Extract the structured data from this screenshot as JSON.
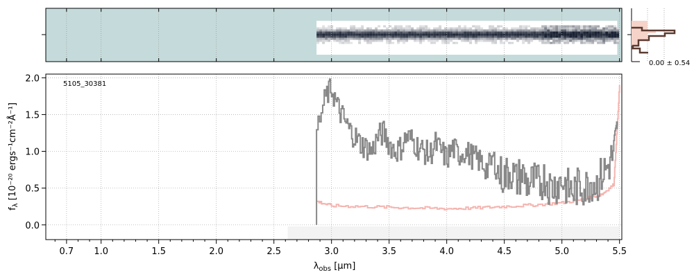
{
  "chart_data": [
    {
      "type": "image",
      "panel": "2d-spectrum",
      "colormap": [
        "#ffffff",
        "#1a2233"
      ],
      "background": "#c5dbdb",
      "x_start": 2.87,
      "x_end": 5.48,
      "xlim": [
        0.52,
        5.52
      ]
    },
    {
      "type": "line",
      "panel": "1d-spectrum",
      "annotation": "5105_30381",
      "xlabel_main": "λ",
      "xlabel_sub": "obs",
      "xlabel_unit": " [μm]",
      "ylabel_main": "f",
      "ylabel_sub": "λ",
      "ylabel_rest": " [10⁻²⁰ ergs⁻¹cm⁻²Å⁻¹]",
      "xlim": [
        0.52,
        5.52
      ],
      "ylim": [
        -0.2,
        2.05
      ],
      "x_ticks": [
        0.7,
        1.0,
        1.5,
        2.0,
        2.5,
        3.0,
        3.5,
        4.0,
        4.5,
        5.0,
        5.5
      ],
      "x_tick_labels": [
        "0.7",
        "1.0",
        "1.5",
        "2.0",
        "2.5",
        "3.0",
        "3.5",
        "4.0",
        "4.5",
        "5.0",
        "5.5"
      ],
      "y_ticks": [
        0.0,
        0.5,
        1.0,
        1.5,
        2.0
      ],
      "y_tick_labels": [
        "0.0",
        "0.5",
        "1.0",
        "1.5",
        "2.0"
      ],
      "grid": true,
      "series": [
        {
          "role": "flux",
          "color": "#888888",
          "x": [
            2.87,
            2.95,
            3.0,
            3.05,
            3.1,
            3.15,
            3.2,
            3.25,
            3.3,
            3.35,
            3.4,
            3.45,
            3.5,
            3.55,
            3.6,
            3.65,
            3.7,
            3.75,
            3.8,
            3.85,
            3.9,
            3.95,
            4.0,
            4.05,
            4.1,
            4.15,
            4.2,
            4.25,
            4.3,
            4.35,
            4.4,
            4.45,
            4.5,
            4.55,
            4.6,
            4.65,
            4.7,
            4.75,
            4.8,
            4.85,
            4.9,
            4.95,
            5.0,
            5.05,
            5.1,
            5.15,
            5.2,
            5.25,
            5.3,
            5.35,
            5.4,
            5.45,
            5.48
          ],
          "values": [
            1.3,
            1.75,
            1.85,
            1.6,
            1.45,
            1.3,
            1.2,
            1.1,
            1.05,
            1.0,
            1.2,
            1.25,
            1.1,
            1.0,
            1.05,
            1.2,
            1.15,
            1.05,
            1.0,
            0.95,
            1.1,
            1.0,
            0.9,
            1.05,
            0.95,
            1.0,
            0.95,
            0.9,
            0.85,
            0.75,
            0.9,
            0.7,
            0.65,
            0.75,
            0.6,
            0.7,
            0.55,
            0.6,
            0.55,
            0.65,
            0.5,
            0.55,
            0.6,
            0.5,
            0.45,
            0.55,
            0.5,
            0.6,
            0.55,
            0.7,
            0.8,
            1.0,
            1.3
          ]
        },
        {
          "role": "error",
          "color": "#f4b5b0",
          "x": [
            2.87,
            3.0,
            3.25,
            3.5,
            3.75,
            4.0,
            4.25,
            4.5,
            4.75,
            5.0,
            5.2,
            5.35,
            5.45,
            5.5
          ],
          "values": [
            0.32,
            0.26,
            0.25,
            0.24,
            0.23,
            0.22,
            0.23,
            0.25,
            0.27,
            0.3,
            0.35,
            0.42,
            0.55,
            1.9
          ]
        }
      ]
    },
    {
      "type": "histogram",
      "panel": "side-profile",
      "annotation": "0.00 ± 0.54",
      "line_color": "#5a3a30",
      "fill_color": "#f6d3c8"
    }
  ]
}
